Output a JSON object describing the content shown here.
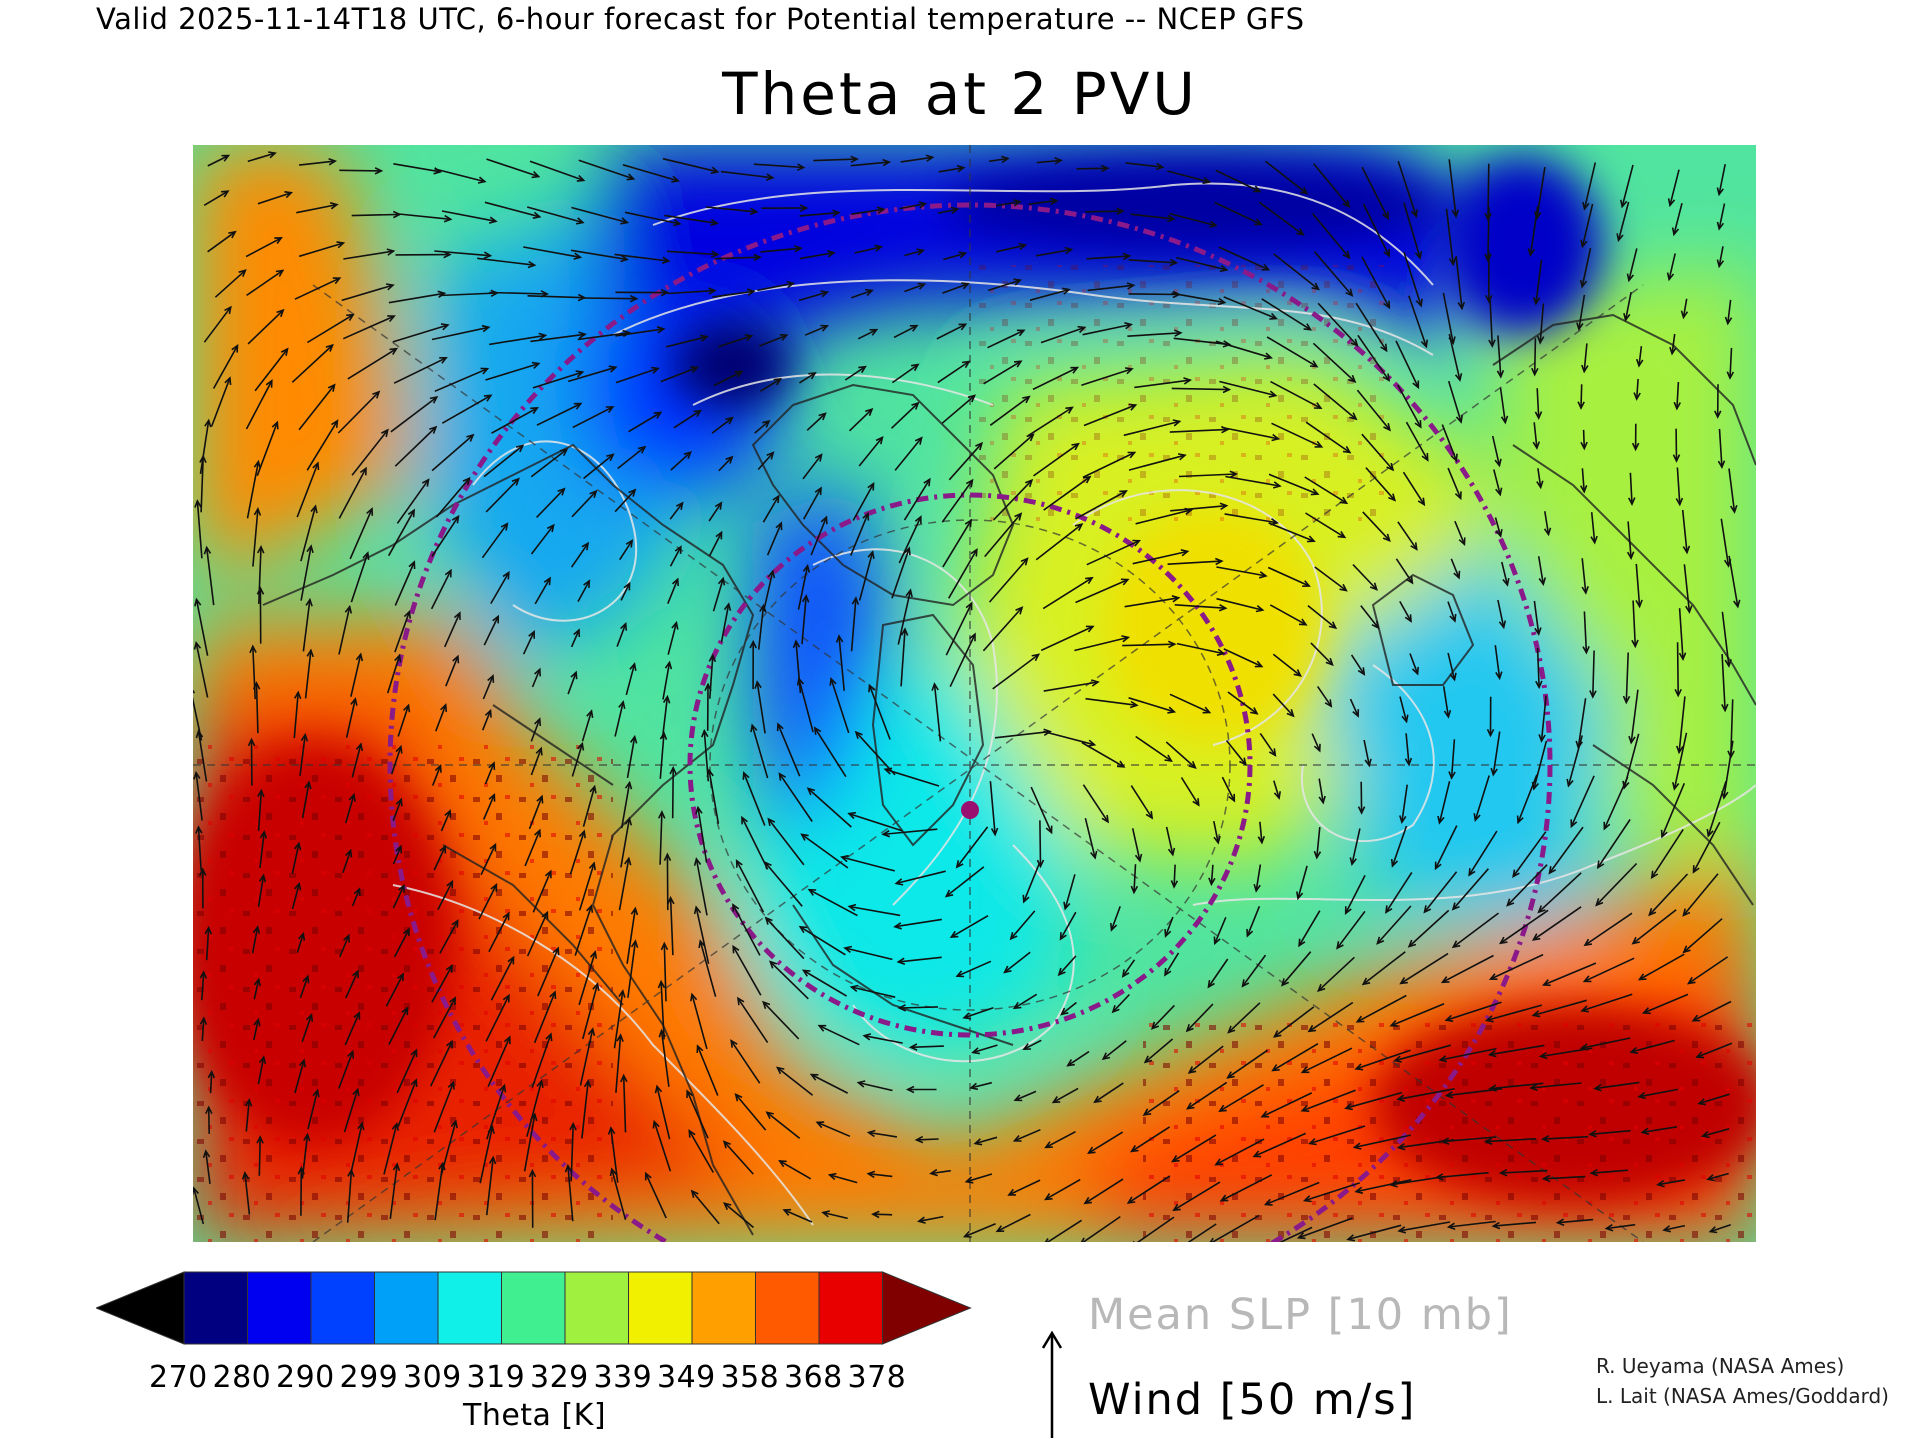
{
  "header": "Valid 2025-11-14T18 UTC, 6-hour forecast for Potential temperature -- NCEP GFS",
  "title": "Theta at 2 PVU",
  "colorbar": {
    "colors": [
      "#000000",
      "#000080",
      "#0000f0",
      "#0040ff",
      "#00a0f8",
      "#10f0e8",
      "#40f090",
      "#a0f040",
      "#f0f000",
      "#ffa000",
      "#ff5a00",
      "#e80000",
      "#800000"
    ],
    "ticks": [
      "270",
      "280",
      "290",
      "299",
      "309",
      "319",
      "329",
      "339",
      "349",
      "358",
      "368",
      "378"
    ],
    "label": "Theta [K]"
  },
  "legend": {
    "slp": "Mean SLP [10 mb]",
    "wind": "Wind [50 m/s]"
  },
  "credits": [
    "R. Ueyama (NASA Ames)",
    "L. Lait (NASA Ames/Goddard)"
  ],
  "map_colors": {
    "contour": "#e8e8e8",
    "coastline": "#222222",
    "dashed_ring": "#8a1a8a",
    "marker": "#9a1070"
  }
}
